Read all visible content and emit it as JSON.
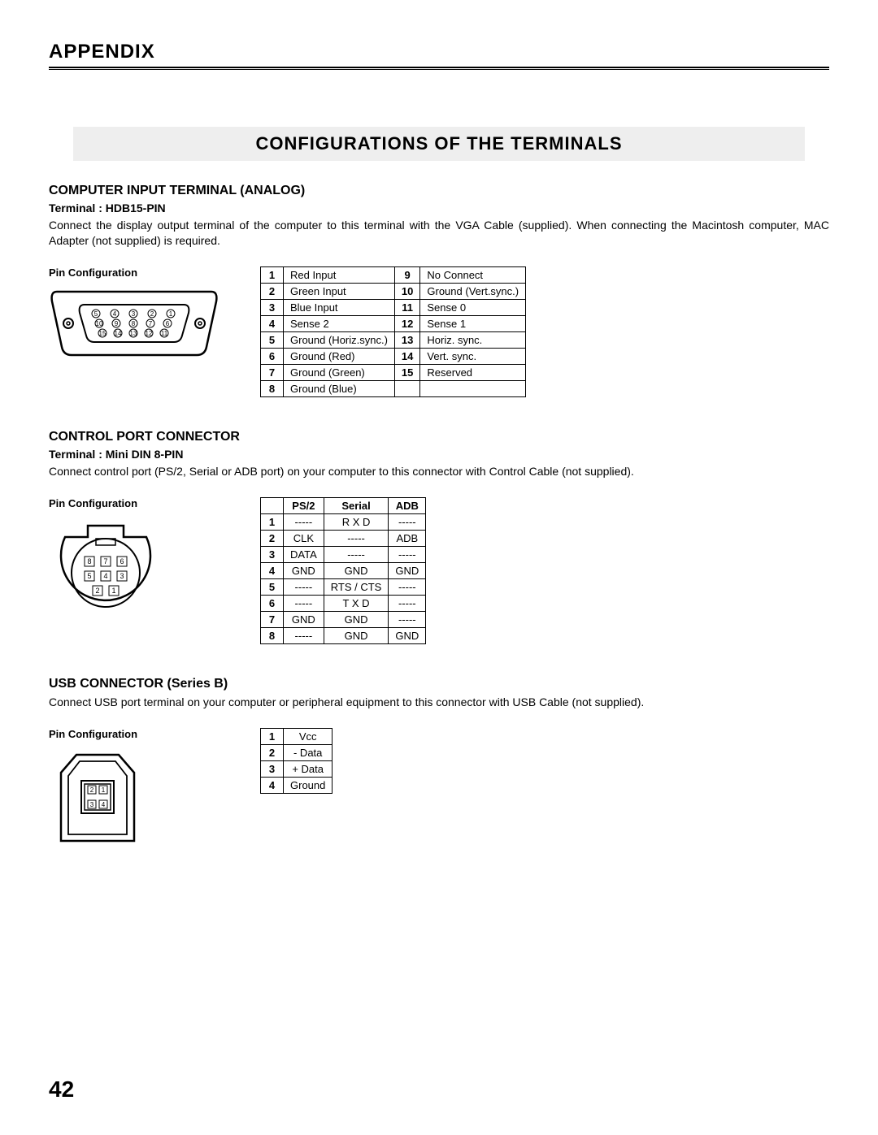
{
  "header": "APPENDIX",
  "title_bar": "CONFIGURATIONS OF THE TERMINALS",
  "page_number": "42",
  "section1": {
    "heading": "COMPUTER INPUT TERMINAL (ANALOG)",
    "terminal": "Terminal : HDB15-PIN",
    "desc": "Connect the display output terminal of the computer to this terminal with the VGA Cable (supplied).  When connecting the Macintosh computer, MAC Adapter (not supplied) is required.",
    "pin_label": "Pin Configuration",
    "pins_left": [
      [
        "1",
        "Red Input"
      ],
      [
        "2",
        "Green Input"
      ],
      [
        "3",
        "Blue Input"
      ],
      [
        "4",
        "Sense 2"
      ],
      [
        "5",
        "Ground (Horiz.sync.)"
      ],
      [
        "6",
        "Ground (Red)"
      ],
      [
        "7",
        "Ground (Green)"
      ],
      [
        "8",
        "Ground (Blue)"
      ]
    ],
    "pins_right": [
      [
        "9",
        "No Connect"
      ],
      [
        "10",
        "Ground (Vert.sync.)"
      ],
      [
        "11",
        "Sense 0"
      ],
      [
        "12",
        "Sense 1"
      ],
      [
        "13",
        "Horiz. sync."
      ],
      [
        "14",
        "Vert. sync."
      ],
      [
        "15",
        "Reserved"
      ],
      [
        "",
        ""
      ]
    ]
  },
  "section2": {
    "heading": "CONTROL PORT CONNECTOR",
    "terminal": "Terminal : Mini DIN 8-PIN",
    "desc": "Connect control port (PS/2, Serial or ADB port) on your computer to this connector with Control Cable (not supplied).",
    "pin_label": "Pin Configuration",
    "columns": [
      "",
      "PS/2",
      "Serial",
      "ADB"
    ],
    "rows": [
      [
        "1",
        "-----",
        "R X D",
        "-----"
      ],
      [
        "2",
        "CLK",
        "-----",
        "ADB"
      ],
      [
        "3",
        "DATA",
        "-----",
        "-----"
      ],
      [
        "4",
        "GND",
        "GND",
        "GND"
      ],
      [
        "5",
        "-----",
        "RTS / CTS",
        "-----"
      ],
      [
        "6",
        "-----",
        "T X D",
        "-----"
      ],
      [
        "7",
        "GND",
        "GND",
        "-----"
      ],
      [
        "8",
        "-----",
        "GND",
        "GND"
      ]
    ]
  },
  "section3": {
    "heading": "USB CONNECTOR (Series B)",
    "desc": "Connect USB port terminal on your computer or peripheral equipment to this connector with USB Cable (not supplied).",
    "pin_label": "Pin Configuration",
    "rows": [
      [
        "1",
        "Vcc"
      ],
      [
        "2",
        "- Data"
      ],
      [
        "3",
        "+ Data"
      ],
      [
        "4",
        "Ground"
      ]
    ]
  }
}
